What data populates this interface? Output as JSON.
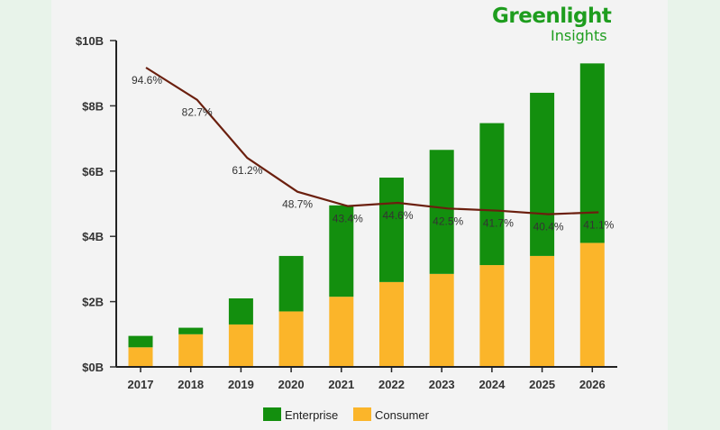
{
  "brand": {
    "name": "Greenlight",
    "sub": "Insights"
  },
  "chart_data": {
    "type": "bar",
    "stacked": true,
    "categories": [
      "2017",
      "2018",
      "2019",
      "2020",
      "2021",
      "2022",
      "2023",
      "2024",
      "2025",
      "2026"
    ],
    "series": [
      {
        "name": "Consumer",
        "color": "#fbb52a",
        "values": [
          0.6,
          1.0,
          1.3,
          1.7,
          2.15,
          2.6,
          2.85,
          3.12,
          3.4,
          3.8
        ]
      },
      {
        "name": "Enterprise",
        "color": "#138f0e",
        "values": [
          0.35,
          0.2,
          0.8,
          1.7,
          2.8,
          3.2,
          3.8,
          4.35,
          5.0,
          5.5
        ]
      }
    ],
    "line": {
      "color": "#6b1f0e",
      "values": [
        94.6,
        82.7,
        61.2,
        48.7,
        43.4,
        44.6,
        42.5,
        41.7,
        40.4,
        41.1
      ],
      "labels": [
        "94.6%",
        "82.7%",
        "61.2%",
        "48.7%",
        "43.4%",
        "44.6%",
        "42.5%",
        "41.7%",
        "40.4%",
        "41.1%"
      ]
    },
    "y_ticks": [
      "$0B",
      "$2B",
      "$4B",
      "$6B",
      "$8B",
      "$10B"
    ],
    "ylim": [
      0,
      10
    ],
    "legend": [
      "Enterprise",
      "Consumer"
    ],
    "legend_position": "bottom"
  }
}
